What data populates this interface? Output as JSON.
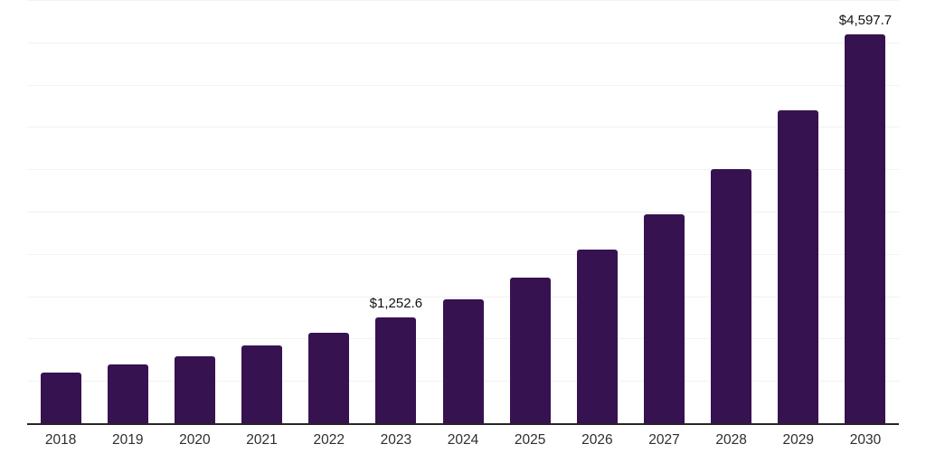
{
  "chart_data": {
    "type": "bar",
    "title": "",
    "xlabel": "",
    "ylabel": "",
    "categories": [
      "2018",
      "2019",
      "2020",
      "2021",
      "2022",
      "2023",
      "2024",
      "2025",
      "2026",
      "2027",
      "2028",
      "2029",
      "2030"
    ],
    "values": [
      600,
      695,
      795,
      920,
      1065,
      1252.6,
      1465,
      1725,
      2055,
      2470,
      3005,
      3700,
      4597.7
    ],
    "data_labels": [
      "",
      "",
      "",
      "",
      "",
      "$1,252.6",
      "",
      "",
      "",
      "",
      "",
      "",
      "$4,597.7"
    ],
    "ylim": [
      0,
      5000
    ],
    "grid_interval": 500,
    "grid": true,
    "legend": false,
    "y_axis_ticks_visible": false,
    "colors": {
      "bar": "#371250",
      "gridline": "#F2F2F2",
      "axis_line": "#262626",
      "tick_label": "#2E2E2E",
      "value_label": "#111111",
      "background": "#FFFFFF"
    }
  }
}
